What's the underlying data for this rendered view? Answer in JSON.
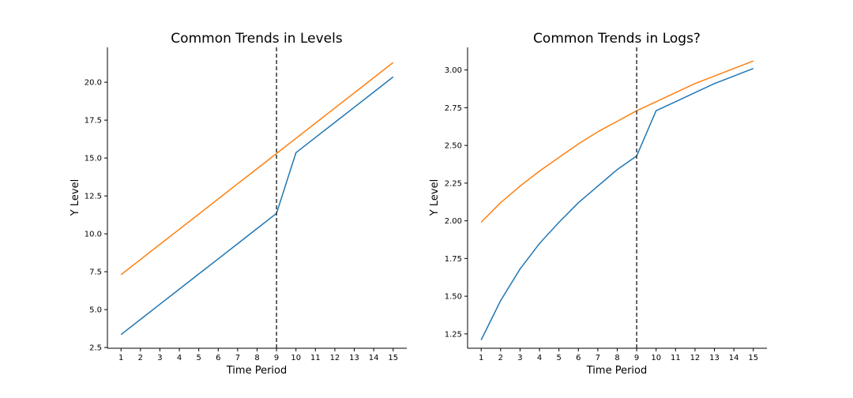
{
  "chart_data": [
    {
      "type": "line",
      "title": "Common Trends in Levels",
      "xlabel": "Time Period",
      "ylabel": "Y Level",
      "x": [
        1,
        2,
        3,
        4,
        5,
        6,
        7,
        8,
        9,
        10,
        11,
        12,
        13,
        14,
        15
      ],
      "xticks": [
        "1",
        "2",
        "3",
        "4",
        "5",
        "6",
        "7",
        "8",
        "9",
        "10",
        "11",
        "12",
        "13",
        "14",
        "15"
      ],
      "yticks": [
        "2.5",
        "5.0",
        "7.5",
        "10.0",
        "12.5",
        "15.0",
        "17.5",
        "20.0"
      ],
      "ylim": [
        2.45,
        22.3
      ],
      "xlim": [
        0.3,
        15.7
      ],
      "vline_x": 9,
      "series": [
        {
          "color": "#1f77b4",
          "values": [
            3.35,
            4.35,
            5.35,
            6.35,
            7.35,
            8.35,
            9.35,
            10.35,
            11.35,
            15.35,
            16.35,
            17.35,
            18.35,
            19.35,
            20.35
          ]
        },
        {
          "color": "#ff7f0e",
          "values": [
            7.3,
            8.3,
            9.3,
            10.3,
            11.3,
            12.3,
            13.3,
            14.3,
            15.3,
            16.3,
            17.3,
            18.3,
            19.3,
            20.3,
            21.3
          ]
        }
      ]
    },
    {
      "type": "line",
      "title": "Common Trends in Logs?",
      "xlabel": "Time Period",
      "ylabel": "Y Level",
      "x": [
        1,
        2,
        3,
        4,
        5,
        6,
        7,
        8,
        9,
        10,
        11,
        12,
        13,
        14,
        15
      ],
      "xticks": [
        "1",
        "2",
        "3",
        "4",
        "5",
        "6",
        "7",
        "8",
        "9",
        "10",
        "11",
        "12",
        "13",
        "14",
        "15"
      ],
      "yticks": [
        "1.25",
        "1.50",
        "1.75",
        "2.00",
        "2.25",
        "2.50",
        "2.75",
        "3.00"
      ],
      "ylim": [
        1.155,
        3.15
      ],
      "xlim": [
        0.3,
        15.7
      ],
      "vline_x": 9,
      "series": [
        {
          "color": "#1f77b4",
          "values": [
            1.21,
            1.47,
            1.68,
            1.85,
            1.99,
            2.12,
            2.23,
            2.34,
            2.43,
            2.73,
            2.79,
            2.85,
            2.91,
            2.96,
            3.01
          ]
        },
        {
          "color": "#ff7f0e",
          "values": [
            1.99,
            2.12,
            2.23,
            2.33,
            2.42,
            2.51,
            2.59,
            2.66,
            2.73,
            2.79,
            2.85,
            2.91,
            2.96,
            3.01,
            3.06
          ]
        }
      ]
    }
  ]
}
